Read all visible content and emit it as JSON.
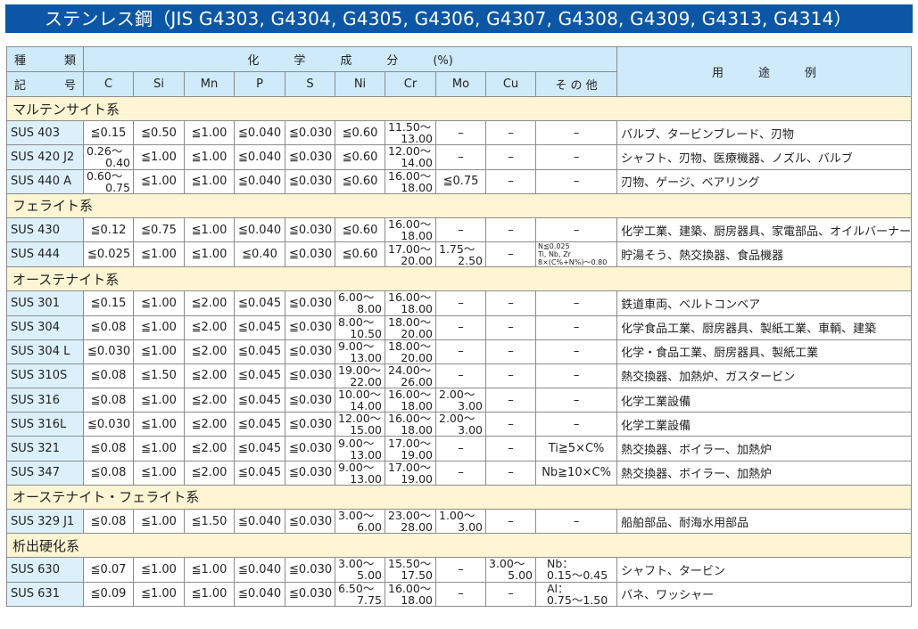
{
  "title": "ステンレス鋼（JIS G4303, G4304, G4305, G4306, G4307, G4308, G4309, G4313, G4314）",
  "colors": {
    "title_bg": "#0b57a6",
    "header_bg": "#cfeafb",
    "group_bg": "#fdf5d3",
    "name_bg": "#dcf0fc"
  },
  "header": {
    "kind_top": [
      "種",
      "類"
    ],
    "kind_bottom": [
      "記",
      "号"
    ],
    "chem": "化　　　学　　　成　　　分　　　(%)",
    "elements": [
      "C",
      "Si",
      "Mn",
      "P",
      "S",
      "Ni",
      "Cr",
      "Mo",
      "Cu",
      "そ の 他"
    ],
    "use": "用　　　途　　　例"
  },
  "rows": [
    {
      "group": "マルテンサイト系"
    },
    {
      "cells": [
        "SUS 403",
        "≦0.15",
        "≦0.50",
        "≦1.00",
        "≦0.040",
        "≦0.030",
        "≦0.60",
        [
          "11.50〜",
          "13.00"
        ],
        "–",
        "–",
        "–",
        "バルブ、タービンブレード、刃物"
      ]
    },
    {
      "cells": [
        "SUS 420 J2",
        [
          "0.26〜",
          "0.40"
        ],
        "≦1.00",
        "≦1.00",
        "≦0.040",
        "≦0.030",
        "≦0.60",
        [
          "12.00〜",
          "14.00"
        ],
        "–",
        "–",
        "–",
        "シャフト、刃物、医療機器、ノズル、バルブ"
      ]
    },
    {
      "cells": [
        "SUS 440 A",
        [
          "0.60〜",
          "0.75"
        ],
        "≦1.00",
        "≦1.00",
        "≦0.040",
        "≦0.030",
        "≦0.60",
        [
          "16.00〜",
          "18.00"
        ],
        "≦0.75",
        "–",
        "–",
        "刃物、ゲージ、ベアリング"
      ]
    },
    {
      "group": "フェライト系"
    },
    {
      "cells": [
        "SUS 430",
        "≦0.12",
        "≦0.75",
        "≦1.00",
        "≦0.040",
        "≦0.030",
        "≦0.60",
        [
          "16.00〜",
          "18.00"
        ],
        "–",
        "–",
        "–",
        "化学工業、建築、厨房器具、家電部品、オイルバーナー部品"
      ]
    },
    {
      "cells": [
        "SUS 444",
        "≦0.025",
        "≦1.00",
        "≦1.00",
        "≦0.40",
        "≦0.030",
        "≦0.60",
        [
          "17.00〜",
          "20.00"
        ],
        [
          "1.75〜",
          "2.50"
        ],
        "–",
        {
          "tiny": [
            "N≦0.025",
            "Ti, Nb, Zr",
            "8×(C%+N%)〜0.80"
          ]
        },
        "貯湯そう、熱交換器、食品機器"
      ]
    },
    {
      "group": "オーステナイト系"
    },
    {
      "cells": [
        "SUS 301",
        "≦0.15",
        "≦1.00",
        "≦2.00",
        "≦0.045",
        "≦0.030",
        [
          "6.00〜",
          "8.00"
        ],
        [
          "16.00〜",
          "18.00"
        ],
        "–",
        "–",
        "–",
        "鉄道車両、ベルトコンベア"
      ]
    },
    {
      "cells": [
        "SUS 304",
        "≦0.08",
        "≦1.00",
        "≦2.00",
        "≦0.045",
        "≦0.030",
        [
          "8.00〜",
          "10.50"
        ],
        [
          "18.00〜",
          "20.00"
        ],
        "–",
        "–",
        "–",
        "化学食品工業、厨房器具、製紙工業、車輌、建築"
      ]
    },
    {
      "cells": [
        "SUS 304 L",
        "≦0.030",
        "≦1.00",
        "≦2.00",
        "≦0.045",
        "≦0.030",
        [
          "9.00〜",
          "13.00"
        ],
        [
          "18.00〜",
          "20.00"
        ],
        "–",
        "–",
        "–",
        "化学・食品工業、厨房器具、製紙工業"
      ]
    },
    {
      "cells": [
        "SUS 310S",
        "≦0.08",
        "≦1.50",
        "≦2.00",
        "≦0.045",
        "≦0.030",
        [
          "19.00〜",
          "22.00"
        ],
        [
          "24.00〜",
          "26.00"
        ],
        "–",
        "–",
        "–",
        "熱交換器、加熱炉、ガスタービン"
      ]
    },
    {
      "cells": [
        "SUS 316",
        "≦0.08",
        "≦1.00",
        "≦2.00",
        "≦0.045",
        "≦0.030",
        [
          "10.00〜",
          "14.00"
        ],
        [
          "16.00〜",
          "18.00"
        ],
        [
          "2.00〜",
          "3.00"
        ],
        "–",
        "–",
        "化学工業設備"
      ]
    },
    {
      "cells": [
        "SUS 316L",
        "≦0.030",
        "≦1.00",
        "≦2.00",
        "≦0.045",
        "≦0.030",
        [
          "12.00〜",
          "15.00"
        ],
        [
          "16.00〜",
          "18.00"
        ],
        [
          "2.00〜",
          "3.00"
        ],
        "–",
        "–",
        "化学工業設備"
      ]
    },
    {
      "cells": [
        "SUS 321",
        "≦0.08",
        "≦1.00",
        "≦2.00",
        "≦0.045",
        "≦0.030",
        [
          "9.00〜",
          "13.00"
        ],
        [
          "17.00〜",
          "19.00"
        ],
        "–",
        "–",
        "Ti≧5×C%",
        "熱交換器、ボイラー、加熱炉"
      ]
    },
    {
      "cells": [
        "SUS 347",
        "≦0.08",
        "≦1.00",
        "≦2.00",
        "≦0.045",
        "≦0.030",
        [
          "9.00〜",
          "13.00"
        ],
        [
          "17.00〜",
          "19.00"
        ],
        "–",
        "–",
        "Nb≧10×C%",
        "熱交換器、ボイラー、加熱炉"
      ]
    },
    {
      "group": "オーステナイト・フェライト系"
    },
    {
      "cells": [
        "SUS 329 J1",
        "≦0.08",
        "≦1.00",
        "≦1.50",
        "≦0.040",
        "≦0.030",
        [
          "3.00〜",
          "6.00"
        ],
        [
          "23.00〜",
          "28.00"
        ],
        [
          "1.00〜",
          "3.00"
        ],
        "–",
        "–",
        "船舶部品、耐海水用部品"
      ]
    },
    {
      "group": "析出硬化系"
    },
    {
      "cells": [
        "SUS 630",
        "≦0.07",
        "≦1.00",
        "≦1.00",
        "≦0.040",
        "≦0.030",
        [
          "3.00〜",
          "5.00"
        ],
        [
          "15.50〜",
          "17.50"
        ],
        "–",
        [
          "3.00〜",
          "5.00"
        ],
        {
          "lines": [
            "Nb：",
            "0.15〜0.45"
          ]
        },
        "シャフト、タービン"
      ]
    },
    {
      "cells": [
        "SUS 631",
        "≦0.09",
        "≦1.00",
        "≦1.00",
        "≦0.040",
        "≦0.030",
        [
          "6.50〜",
          "7.75"
        ],
        [
          "16.00〜",
          "18.00"
        ],
        "–",
        "–",
        {
          "lines": [
            "Al：",
            "0.75〜1.50"
          ]
        },
        "バネ、ワッシャー"
      ]
    }
  ]
}
